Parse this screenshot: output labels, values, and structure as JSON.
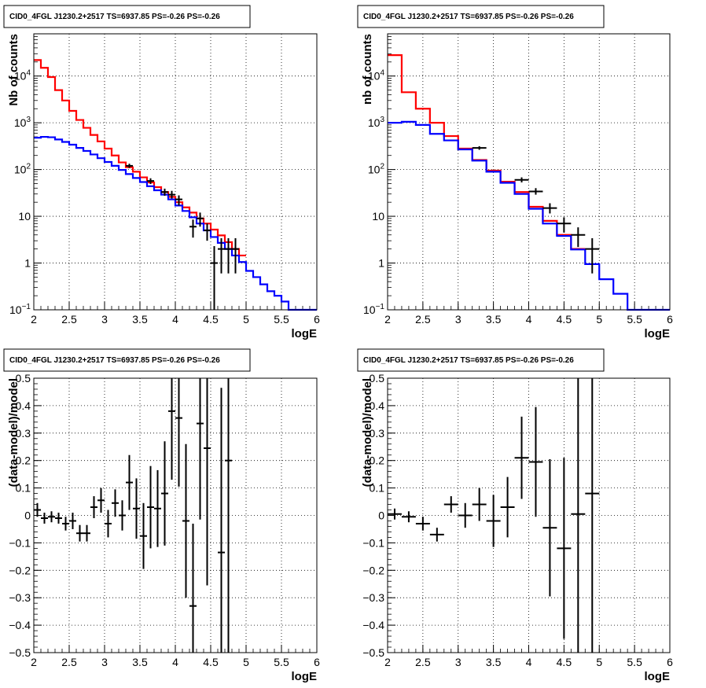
{
  "colors": {
    "total_model": "#ff0000",
    "source_model": "#0000ff",
    "data": "#000000",
    "grid": "#000000"
  },
  "chart_data": [
    {
      "panel": "counts-left",
      "type": "line",
      "title": "CID0_4FGL J1230.2+2517 TS=6937.85 PS=-0.26 PS=-0.26",
      "xlabel": "logE",
      "ylabel": "Nb of counts",
      "xlim": [
        2,
        6
      ],
      "ylim": [
        0.1,
        80000
      ],
      "yscale": "log",
      "grid": true,
      "x_ticks": [
        "2",
        "2.5",
        "3",
        "3.5",
        "4",
        "4.5",
        "5",
        "5.5",
        "6"
      ],
      "y_ticks": [
        {
          "v": 0.1,
          "base": "10",
          "exp": "−1"
        },
        {
          "v": 1,
          "label": "1"
        },
        {
          "v": 10,
          "label": "10"
        },
        {
          "v": 100,
          "base": "10",
          "exp": "2"
        },
        {
          "v": 1000,
          "base": "10",
          "exp": "3"
        },
        {
          "v": 10000,
          "base": "10",
          "exp": "4"
        }
      ],
      "bin_width": 0.1,
      "x_start": 2.0,
      "series": [
        {
          "color_key": "total_model",
          "values": [
            22000,
            15000,
            9500,
            5000,
            3000,
            1800,
            1150,
            780,
            550,
            400,
            280,
            200,
            142,
            112,
            90,
            68,
            53,
            42,
            33,
            26,
            20,
            15.5,
            12,
            9,
            7,
            5.2,
            3.9,
            2.8,
            2.0,
            1.45
          ]
        },
        {
          "color_key": "source_model",
          "values": [
            480,
            500,
            490,
            440,
            390,
            340,
            290,
            250,
            210,
            175,
            145,
            120,
            98,
            80,
            66,
            54,
            44,
            36,
            29,
            23,
            17,
            13,
            9.5,
            7,
            5,
            3.6,
            2.7,
            2.0,
            1.45,
            1.05,
            0.68,
            0.5,
            0.35,
            0.25,
            0.2,
            0.15,
            0.1,
            0.1,
            0.1,
            0.1
          ]
        }
      ],
      "points": [
        {
          "x": 3.35,
          "y": 120,
          "lo": 108,
          "hi": 133
        },
        {
          "x": 3.65,
          "y": 57,
          "lo": 49,
          "hi": 65
        },
        {
          "x": 3.85,
          "y": 33,
          "lo": 27.5,
          "hi": 39
        },
        {
          "x": 3.95,
          "y": 29,
          "lo": 24,
          "hi": 35
        },
        {
          "x": 4.05,
          "y": 23,
          "lo": 17,
          "hi": 28
        },
        {
          "x": 4.25,
          "y": 6,
          "lo": 3.5,
          "hi": 8.5
        },
        {
          "x": 4.35,
          "y": 9,
          "lo": 6,
          "hi": 12
        },
        {
          "x": 4.45,
          "y": 5,
          "lo": 3,
          "hi": 7
        },
        {
          "x": 4.55,
          "y": 1,
          "lo": 0.1,
          "hi": 2.3
        },
        {
          "x": 4.65,
          "y": 2,
          "lo": 0.6,
          "hi": 3.4
        },
        {
          "x": 4.75,
          "y": 2,
          "lo": 0.6,
          "hi": 3.4
        },
        {
          "x": 4.85,
          "y": 2,
          "lo": 0.6,
          "hi": 3.4
        }
      ],
      "point_xerr": 0.05
    },
    {
      "panel": "counts-right",
      "type": "line",
      "title": "CID0_4FGL J1230.2+2517 TS=6937.85 PS=-0.26 PS=-0.26",
      "xlabel": "logE",
      "ylabel": "nb of counts",
      "xlim": [
        2,
        6
      ],
      "ylim": [
        0.1,
        80000
      ],
      "yscale": "log",
      "grid": true,
      "x_ticks": [
        "2",
        "2.5",
        "3",
        "3.5",
        "4",
        "4.5",
        "5",
        "5.5",
        "6"
      ],
      "y_ticks": [
        {
          "v": 0.1,
          "base": "10",
          "exp": "−1"
        },
        {
          "v": 1,
          "label": "1"
        },
        {
          "v": 10,
          "label": "10"
        },
        {
          "v": 100,
          "base": "10",
          "exp": "2"
        },
        {
          "v": 1000,
          "base": "10",
          "exp": "3"
        },
        {
          "v": 10000,
          "base": "10",
          "exp": "4"
        }
      ],
      "bin_width": 0.2,
      "x_start": 2.0,
      "series": [
        {
          "color_key": "total_model",
          "values": [
            28000,
            4500,
            2000,
            1000,
            520,
            280,
            160,
            95,
            55,
            33,
            16,
            8,
            4,
            2
          ]
        },
        {
          "color_key": "source_model",
          "values": [
            1000,
            1050,
            900,
            580,
            420,
            270,
            155,
            90,
            52,
            30,
            14.5,
            7,
            3.8,
            1.95,
            0.95,
            0.45,
            0.22,
            0.1,
            0.1,
            0.1
          ]
        }
      ],
      "points": [
        {
          "x": 3.3,
          "y": 290,
          "lo": 265,
          "hi": 315
        },
        {
          "x": 3.9,
          "y": 60,
          "lo": 53,
          "hi": 68
        },
        {
          "x": 4.1,
          "y": 34,
          "lo": 29,
          "hi": 40
        },
        {
          "x": 4.3,
          "y": 15,
          "lo": 11.5,
          "hi": 19
        },
        {
          "x": 4.5,
          "y": 7,
          "lo": 4.5,
          "hi": 9.5
        },
        {
          "x": 4.7,
          "y": 4,
          "lo": 2.2,
          "hi": 5.8
        },
        {
          "x": 4.9,
          "y": 2,
          "lo": 0.6,
          "hi": 3.4
        }
      ],
      "point_xerr": 0.1
    },
    {
      "panel": "residual-left",
      "type": "scatter",
      "title": "CID0_4FGL J1230.2+2517 TS=6937.85 PS=-0.26 PS=-0.26",
      "xlabel": "logE",
      "ylabel": "(data-model)/model",
      "xlim": [
        2,
        6
      ],
      "ylim": [
        -0.5,
        0.5
      ],
      "yscale": "linear",
      "grid": true,
      "x_ticks": [
        "2",
        "2.5",
        "3",
        "3.5",
        "4",
        "4.5",
        "5",
        "5.5",
        "6"
      ],
      "y_ticks": [
        {
          "v": -0.5,
          "label": "−0.5"
        },
        {
          "v": -0.4,
          "label": "−0.4"
        },
        {
          "v": -0.3,
          "label": "−0.3"
        },
        {
          "v": -0.2,
          "label": "−0.2"
        },
        {
          "v": -0.1,
          "label": "−0.1"
        },
        {
          "v": 0,
          "label": "0"
        },
        {
          "v": 0.1,
          "label": "0.1"
        },
        {
          "v": 0.2,
          "label": "0.2"
        },
        {
          "v": 0.3,
          "label": "0.3"
        },
        {
          "v": 0.4,
          "label": "0.4"
        },
        {
          "v": 0.5,
          "label": "0.5"
        }
      ],
      "point_xerr": 0.05,
      "points": [
        {
          "x": 2.05,
          "y": 0.02,
          "e": 0.025
        },
        {
          "x": 2.15,
          "y": -0.01,
          "e": 0.02
        },
        {
          "x": 2.25,
          "y": -0.005,
          "e": 0.02
        },
        {
          "x": 2.35,
          "y": -0.01,
          "e": 0.02
        },
        {
          "x": 2.45,
          "y": -0.03,
          "e": 0.025
        },
        {
          "x": 2.55,
          "y": -0.02,
          "e": 0.03
        },
        {
          "x": 2.65,
          "y": -0.065,
          "e": 0.03
        },
        {
          "x": 2.75,
          "y": -0.065,
          "e": 0.03
        },
        {
          "x": 2.85,
          "y": 0.03,
          "e": 0.04
        },
        {
          "x": 2.95,
          "y": 0.055,
          "e": 0.045
        },
        {
          "x": 3.05,
          "y": -0.03,
          "e": 0.05
        },
        {
          "x": 3.15,
          "y": 0.045,
          "e": 0.05
        },
        {
          "x": 3.25,
          "y": 0.0,
          "e": 0.055
        },
        {
          "x": 3.35,
          "y": 0.12,
          "e": 0.1
        },
        {
          "x": 3.45,
          "y": 0.025,
          "e": 0.11
        },
        {
          "x": 3.55,
          "y": -0.075,
          "e": 0.12
        },
        {
          "x": 3.65,
          "y": 0.03,
          "e": 0.15
        },
        {
          "x": 3.75,
          "y": 0.025,
          "e": 0.14
        },
        {
          "x": 3.85,
          "y": 0.08,
          "e": 0.19
        },
        {
          "x": 3.95,
          "y": 0.38,
          "e": 0.25
        },
        {
          "x": 4.05,
          "y": 0.355,
          "e": 0.25
        },
        {
          "x": 4.15,
          "y": -0.02,
          "e": 0.28
        },
        {
          "x": 4.25,
          "y": -0.33,
          "e": 0.3
        },
        {
          "x": 4.35,
          "y": 0.335,
          "e": 0.35
        },
        {
          "x": 4.45,
          "y": 0.245,
          "e": 0.5
        },
        {
          "x": 4.65,
          "y": -0.135,
          "e": 0.6
        },
        {
          "x": 4.75,
          "y": 0.2,
          "e": 0.8
        }
      ]
    },
    {
      "panel": "residual-right",
      "type": "scatter",
      "title": "CID0_4FGL J1230.2+2517 TS=6937.85 PS=-0.26 PS=-0.26",
      "xlabel": "logE",
      "ylabel": "(data-model)/model",
      "xlim": [
        2,
        6
      ],
      "ylim": [
        -0.5,
        0.5
      ],
      "yscale": "linear",
      "grid": true,
      "x_ticks": [
        "2",
        "2.5",
        "3",
        "3.5",
        "4",
        "4.5",
        "5",
        "5.5",
        "6"
      ],
      "y_ticks": [
        {
          "v": -0.5,
          "label": "−0.5"
        },
        {
          "v": -0.4,
          "label": "−0.4"
        },
        {
          "v": -0.3,
          "label": "−0.3"
        },
        {
          "v": -0.2,
          "label": "−0.2"
        },
        {
          "v": -0.1,
          "label": "−0.1"
        },
        {
          "v": 0,
          "label": "0"
        },
        {
          "v": 0.1,
          "label": "0.1"
        },
        {
          "v": 0.2,
          "label": "0.2"
        },
        {
          "v": 0.3,
          "label": "0.3"
        },
        {
          "v": 0.4,
          "label": "0.4"
        },
        {
          "v": 0.5,
          "label": "0.5"
        }
      ],
      "point_xerr": 0.1,
      "points": [
        {
          "x": 2.1,
          "y": 0.005,
          "e": 0.02
        },
        {
          "x": 2.3,
          "y": -0.005,
          "e": 0.02
        },
        {
          "x": 2.5,
          "y": -0.03,
          "e": 0.025
        },
        {
          "x": 2.7,
          "y": -0.07,
          "e": 0.025
        },
        {
          "x": 2.9,
          "y": 0.04,
          "e": 0.03
        },
        {
          "x": 3.1,
          "y": 0.0,
          "e": 0.045
        },
        {
          "x": 3.3,
          "y": 0.04,
          "e": 0.06
        },
        {
          "x": 3.5,
          "y": -0.02,
          "e": 0.095
        },
        {
          "x": 3.7,
          "y": 0.03,
          "e": 0.11
        },
        {
          "x": 3.9,
          "y": 0.21,
          "e": 0.15
        },
        {
          "x": 4.1,
          "y": 0.195,
          "e": 0.2
        },
        {
          "x": 4.3,
          "y": -0.045,
          "e": 0.25
        },
        {
          "x": 4.5,
          "y": -0.12,
          "e": 0.33
        },
        {
          "x": 4.7,
          "y": 0.005,
          "e": 0.55
        },
        {
          "x": 4.9,
          "y": 0.08,
          "e": 0.65
        }
      ]
    }
  ]
}
